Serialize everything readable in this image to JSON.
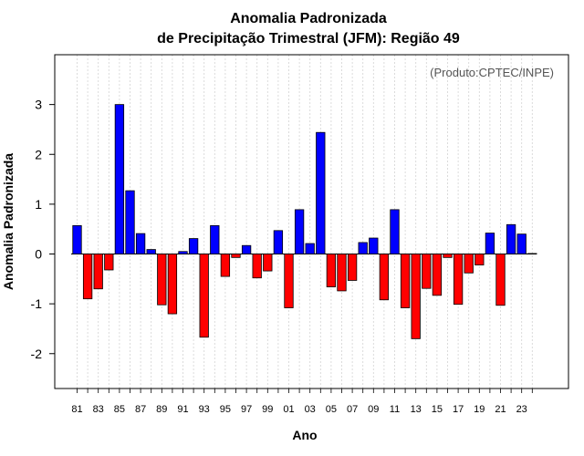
{
  "chart_data": {
    "type": "bar",
    "title": "Anomalia Padronizada",
    "subtitle": "de Precipitação Trimestral (JFM): Região 49",
    "xlabel": "Ano",
    "ylabel": "Anomalia Padronizada",
    "credit": "(Produto:CPTEC/INPE)",
    "ylim": [
      -2.7,
      4.0
    ],
    "yticks": [
      -2,
      -1,
      0,
      1,
      2,
      3
    ],
    "grid": true,
    "positive_color": "#0000ff",
    "negative_color": "#ff0000",
    "categories": [
      "81",
      "82",
      "83",
      "84",
      "85",
      "86",
      "87",
      "88",
      "89",
      "90",
      "91",
      "92",
      "93",
      "94",
      "95",
      "96",
      "97",
      "98",
      "99",
      "00",
      "01",
      "02",
      "03",
      "04",
      "05",
      "06",
      "07",
      "08",
      "09",
      "10",
      "11",
      "12",
      "13",
      "14",
      "15",
      "16",
      "17",
      "18",
      "19",
      "20",
      "21",
      "22",
      "23",
      "24"
    ],
    "tick_labels": [
      "81",
      "83",
      "85",
      "87",
      "89",
      "91",
      "93",
      "95",
      "97",
      "99",
      "01",
      "03",
      "05",
      "07",
      "09",
      "11",
      "13",
      "15",
      "17",
      "19",
      "21",
      "23"
    ],
    "values": [
      0.57,
      -0.9,
      -0.7,
      -0.32,
      3.0,
      1.27,
      0.41,
      0.09,
      -1.02,
      -1.2,
      0.05,
      0.31,
      -1.67,
      0.57,
      -0.45,
      -0.07,
      0.17,
      -0.48,
      -0.34,
      0.47,
      -1.08,
      0.89,
      0.21,
      2.44,
      -0.66,
      -0.74,
      -0.53,
      0.23,
      0.32,
      -0.92,
      0.89,
      -1.08,
      -1.7,
      -0.69,
      -0.83,
      -0.07,
      -1.01,
      -0.38,
      -0.22,
      0.42,
      -1.03,
      0.59,
      0.4,
      0.01
    ]
  }
}
